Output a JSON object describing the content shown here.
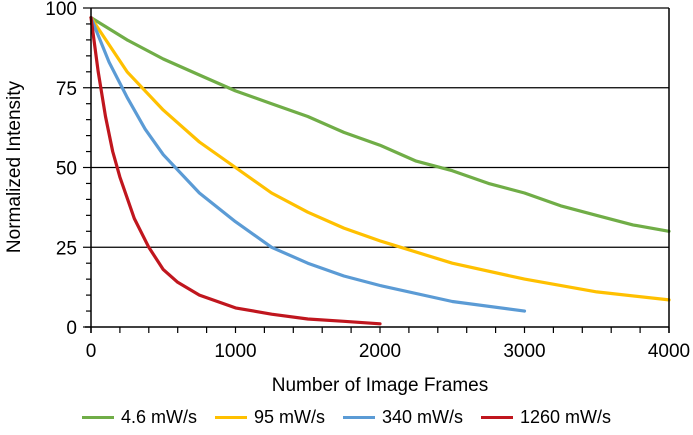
{
  "chart_data": {
    "type": "line",
    "title": "",
    "xlabel": "Number of Image Frames",
    "ylabel": "Normalized Intensity",
    "xlim": [
      0,
      4000
    ],
    "ylim": [
      0,
      100
    ],
    "x_ticks": [
      0,
      1000,
      2000,
      3000,
      4000
    ],
    "y_ticks": [
      0,
      25,
      50,
      75,
      100
    ],
    "grid": "horizontal major gridlines at 25, 50, 75, 100",
    "legend_position": "bottom",
    "series": [
      {
        "name": "4.6 mW/s",
        "color": "#70AD47",
        "x": [
          0,
          250,
          500,
          750,
          1000,
          1250,
          1500,
          1750,
          2000,
          2250,
          2500,
          2750,
          3000,
          3250,
          3500,
          3750,
          4000
        ],
        "values": [
          97,
          90,
          84,
          79,
          74,
          70,
          66,
          61,
          57,
          52,
          49,
          45,
          42,
          38,
          35,
          32,
          30
        ]
      },
      {
        "name": "95 mW/s",
        "color": "#FFC000",
        "x": [
          0,
          250,
          500,
          750,
          1000,
          1250,
          1500,
          1750,
          2000,
          2500,
          3000,
          3500,
          4000
        ],
        "values": [
          97,
          80,
          68,
          58,
          50,
          42,
          36,
          31,
          27,
          20,
          15,
          11,
          8.5
        ]
      },
      {
        "name": "340 mW/s",
        "color": "#5B9BD5",
        "x": [
          0,
          125,
          250,
          375,
          500,
          750,
          1000,
          1250,
          1500,
          1750,
          2000,
          2500,
          3000
        ],
        "values": [
          97,
          83,
          72,
          62,
          54,
          42,
          33,
          25,
          20,
          16,
          13,
          8,
          5
        ]
      },
      {
        "name": "1260 mW/s",
        "color": "#C0161E",
        "x": [
          0,
          50,
          100,
          150,
          200,
          300,
          400,
          500,
          600,
          750,
          1000,
          1250,
          1500,
          1750,
          2000
        ],
        "values": [
          97,
          80,
          66,
          55,
          47,
          34,
          25,
          18,
          14,
          10,
          6,
          4,
          2.5,
          1.8,
          1
        ]
      }
    ]
  },
  "legend": [
    {
      "label": "4.6 mW/s",
      "color": "#70AD47"
    },
    {
      "label": "95 mW/s",
      "color": "#FFC000"
    },
    {
      "label": "340 mW/s",
      "color": "#5B9BD5"
    },
    {
      "label": "1260 mW/s",
      "color": "#C0161E"
    }
  ]
}
